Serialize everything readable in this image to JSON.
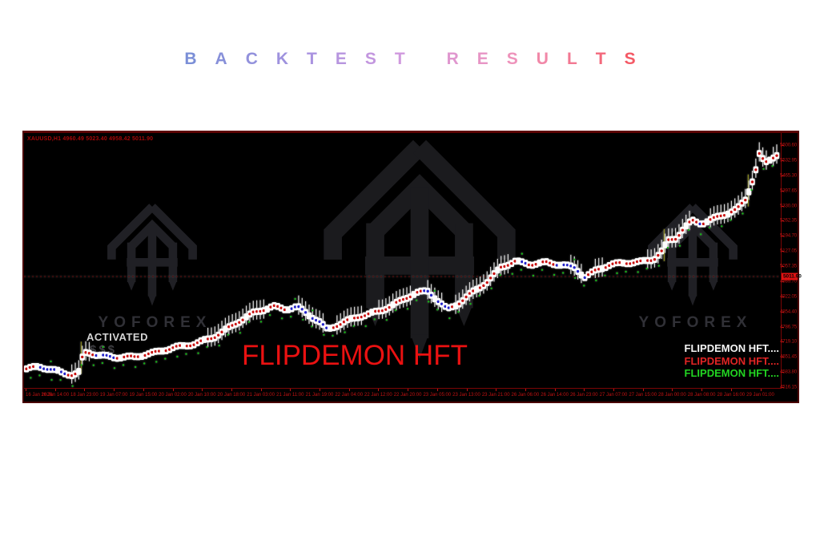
{
  "header": {
    "title": "BACKTEST RESULTS",
    "gradient_stops": [
      "#7b8fd7",
      "#a793e0",
      "#d69ade",
      "#f093b8",
      "#f45a66"
    ]
  },
  "chart": {
    "symbol_line": "XAUUSD,H1  4960.49 5023.40 4958.42 5011.90",
    "watermark_text": "YOFOREX",
    "activated_label": "ACTIVATED",
    "dollars_label": "$$$",
    "overlay_title": "FLIPDEMON HFT",
    "legend": [
      {
        "label": "FLIPDEMON HFT....",
        "color": "#f5f5f5"
      },
      {
        "label": "FLIPDEMON HFT....",
        "color": "#e02424"
      },
      {
        "label": "FLIPDEMON HFT....",
        "color": "#22d422"
      }
    ],
    "colors": {
      "background": "#000000",
      "axis_text": "#c01212",
      "axis_line": "#7a0505",
      "symbol_text": "#a80808",
      "tag_bg": "#e01212",
      "tag_text": "#000000",
      "candle": "#ffffff",
      "dot_red": "#c81212",
      "dot_blue": "#2424c8",
      "dot_green": "#14b414",
      "event_line": "#90901a",
      "overlay_red": "#ea1111",
      "watermark": "#202025",
      "watermark_center": "#1b1b1e",
      "watermark_text_color": "#303036",
      "bid_line": "#5a0202"
    }
  },
  "chart_data": {
    "type": "candlestick",
    "symbol": "XAUUSD",
    "timeframe": "H1",
    "ohlc": {
      "open": "4960.49",
      "high": "5023.40",
      "low": "4958.42",
      "close": "5011.90"
    },
    "current_price": 5011.9,
    "ylim": [
      4516.15,
      5600.6
    ],
    "y_ticks": [
      "5600.60",
      "5532.95",
      "5465.30",
      "5397.65",
      "5330.00",
      "5262.35",
      "5194.70",
      "5127.05",
      "5057.35",
      "4989.70",
      "4922.05",
      "4854.40",
      "4786.75",
      "4719.10",
      "4651.45",
      "4583.80",
      "4516.15"
    ],
    "x_ticks": [
      "16 Jan 2026",
      "16 Jan 14:00",
      "18 Jan 23:00",
      "19 Jan 07:00",
      "19 Jan 15:00",
      "20 Jan 02:00",
      "20 Jan 10:00",
      "20 Jan 18:00",
      "21 Jan 03:00",
      "21 Jan 11:00",
      "21 Jan 19:00",
      "22 Jan 04:00",
      "22 Jan 12:00",
      "22 Jan 20:00",
      "23 Jan 05:00",
      "23 Jan 13:00",
      "23 Jan 21:00",
      "26 Jan 06:00",
      "26 Jan 14:00",
      "26 Jan 23:00",
      "27 Jan 07:00",
      "27 Jan 15:00",
      "28 Jan 00:00",
      "28 Jan 08:00",
      "28 Jan 16:00",
      "29 Jan 01:00"
    ],
    "bars": 216,
    "price_path": [
      [
        0.001,
        4598
      ],
      [
        0.017,
        4605
      ],
      [
        0.033,
        4591
      ],
      [
        0.049,
        4577
      ],
      [
        0.062,
        4570
      ],
      [
        0.07,
        4584
      ],
      [
        0.073,
        4641
      ],
      [
        0.08,
        4677
      ],
      [
        0.096,
        4663
      ],
      [
        0.117,
        4652
      ],
      [
        0.144,
        4648
      ],
      [
        0.17,
        4666
      ],
      [
        0.197,
        4695
      ],
      [
        0.223,
        4713
      ],
      [
        0.25,
        4741
      ],
      [
        0.276,
        4791
      ],
      [
        0.302,
        4845
      ],
      [
        0.329,
        4880
      ],
      [
        0.345,
        4869
      ],
      [
        0.361,
        4880
      ],
      [
        0.376,
        4841
      ],
      [
        0.39,
        4809
      ],
      [
        0.401,
        4770
      ],
      [
        0.411,
        4784
      ],
      [
        0.424,
        4805
      ],
      [
        0.445,
        4834
      ],
      [
        0.472,
        4862
      ],
      [
        0.498,
        4902
      ],
      [
        0.519,
        4937
      ],
      [
        0.535,
        4941
      ],
      [
        0.549,
        4898
      ],
      [
        0.561,
        4862
      ],
      [
        0.574,
        4887
      ],
      [
        0.593,
        4941
      ],
      [
        0.614,
        4991
      ],
      [
        0.633,
        5055
      ],
      [
        0.651,
        5076
      ],
      [
        0.672,
        5062
      ],
      [
        0.693,
        5073
      ],
      [
        0.715,
        5066
      ],
      [
        0.731,
        5055
      ],
      [
        0.744,
        5012
      ],
      [
        0.76,
        5041
      ],
      [
        0.778,
        5062
      ],
      [
        0.799,
        5069
      ],
      [
        0.82,
        5076
      ],
      [
        0.836,
        5091
      ],
      [
        0.848,
        5133
      ],
      [
        0.855,
        5176
      ],
      [
        0.866,
        5187
      ],
      [
        0.874,
        5223
      ],
      [
        0.887,
        5262
      ],
      [
        0.9,
        5247
      ],
      [
        0.912,
        5262
      ],
      [
        0.923,
        5276
      ],
      [
        0.933,
        5290
      ],
      [
        0.947,
        5312
      ],
      [
        0.958,
        5354
      ],
      [
        0.964,
        5408
      ],
      [
        0.971,
        5479
      ],
      [
        0.977,
        5568
      ],
      [
        0.984,
        5522
      ],
      [
        0.992,
        5540
      ],
      [
        0.999,
        5561
      ]
    ],
    "event_lines_t": [
      0.073,
      0.85,
      0.962
    ]
  }
}
